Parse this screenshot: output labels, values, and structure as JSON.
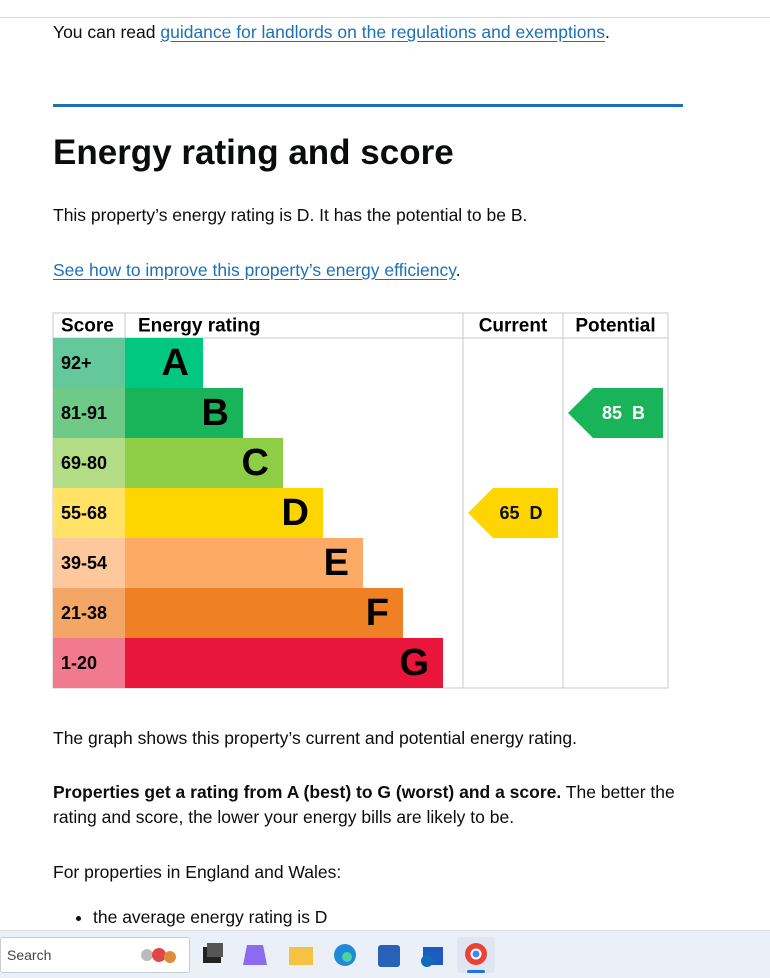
{
  "intro": {
    "before": "You can read ",
    "link": "guidance for landlords on the regulations and exemptions",
    "after": "."
  },
  "heading": "Energy rating and score",
  "summary": "This property’s energy rating is D. It has the potential to be B.",
  "improve": {
    "link": "See how to improve this property’s energy efficiency",
    "after": "."
  },
  "epc": {
    "headers": [
      "Score",
      "Energy rating",
      "Current",
      "Potential"
    ],
    "bands": [
      {
        "score": "92+",
        "letter": "A",
        "color": "#00c781",
        "score_color": "#63c89c"
      },
      {
        "score": "81-91",
        "letter": "B",
        "color": "#19b459",
        "score_color": "#6fc987"
      },
      {
        "score": "69-80",
        "letter": "C",
        "color": "#8dce46",
        "score_color": "#b3dd84"
      },
      {
        "score": "55-68",
        "letter": "D",
        "color": "#ffd500",
        "score_color": "#ffe266"
      },
      {
        "score": "39-54",
        "letter": "E",
        "color": "#fcaa65",
        "score_color": "#fdc89b"
      },
      {
        "score": "21-38",
        "letter": "F",
        "color": "#ef8023",
        "score_color": "#f4a667"
      },
      {
        "score": "1-20",
        "letter": "G",
        "color": "#e9153b",
        "score_color": "#f17a8e"
      }
    ],
    "current": {
      "score": 65,
      "letter": "D",
      "color": "#ffd500"
    },
    "potential": {
      "score": 85,
      "letter": "B",
      "color": "#19b459"
    }
  },
  "graph_note": "The graph shows this property’s current and potential energy rating.",
  "rating_info": {
    "bold": "Properties get a rating from A (best) to G (worst) and a score.",
    "rest": " The better the rating and score, the lower your energy bills are likely to be."
  },
  "region": "For properties in England and Wales:",
  "bullets": [
    "the average energy rating is D"
  ],
  "taskbar": {
    "search": "Search"
  }
}
